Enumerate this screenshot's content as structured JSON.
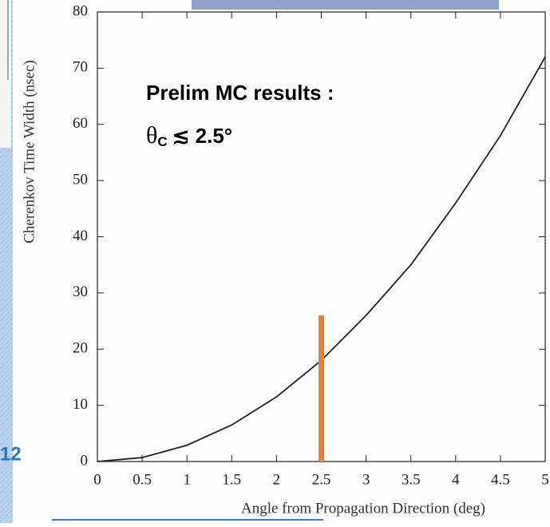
{
  "chart_data": {
    "type": "line",
    "xlabel": "Angle from Propagation Direction (deg)",
    "ylabel": "Cherenkov Time Width (nsec)",
    "x": [
      0,
      0.5,
      1,
      1.5,
      2,
      2.5,
      3,
      3.5,
      4,
      4.5,
      5
    ],
    "series": [
      {
        "color": "#222222",
        "values": [
          0,
          0.7,
          2.9,
          6.5,
          11.5,
          18,
          26,
          35,
          46,
          58,
          72
        ]
      }
    ],
    "xlim": [
      0,
      5
    ],
    "ylim": [
      0,
      80
    ],
    "xticks": [
      0,
      0.5,
      1,
      1.5,
      2,
      2.5,
      3,
      3.5,
      4,
      4.5,
      5
    ],
    "yticks": [
      0,
      10,
      20,
      30,
      40,
      50,
      60,
      70,
      80
    ],
    "vline": {
      "x": 2.5,
      "y": [
        0,
        26
      ],
      "color": "#ed7d31"
    },
    "annotation": {
      "line1": "Prelim MC results :",
      "symbol": "θ",
      "subscript": "C",
      "text": "≲ 2.5°"
    },
    "fragment": "12"
  }
}
